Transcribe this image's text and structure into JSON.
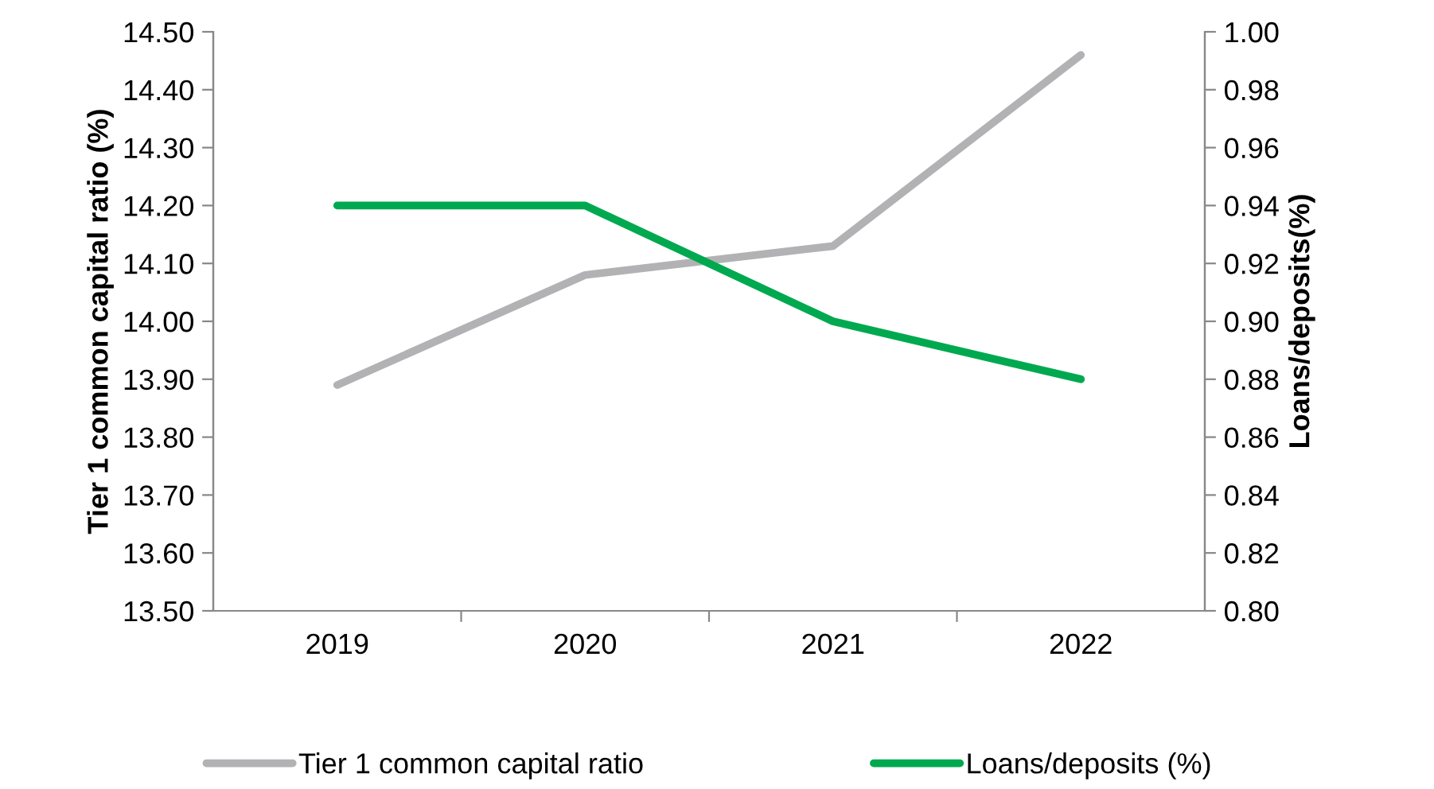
{
  "chart_data": {
    "type": "line",
    "categories": [
      "2019",
      "2020",
      "2021",
      "2022"
    ],
    "ylabel": "Tier 1 common capital ratio (%)",
    "y2label": "Loans/deposits(%)",
    "series": [
      {
        "name": "Tier 1 common capital ratio",
        "color": "#b2b2b4",
        "values": [
          13.89,
          14.08,
          14.13,
          14.46
        ]
      },
      {
        "name": "Loans/deposits (%)",
        "color": "#00a94f",
        "axis": "y2",
        "values": [
          0.94,
          0.94,
          0.9,
          0.88
        ]
      }
    ],
    "ylim": [
      13.5,
      14.5
    ],
    "yticks": [
      {
        "value": 13.5,
        "label": "13.50"
      },
      {
        "value": 13.6,
        "label": "13.60"
      },
      {
        "value": 13.7,
        "label": "13.70"
      },
      {
        "value": 13.8,
        "label": "13.80"
      },
      {
        "value": 13.9,
        "label": "13.90"
      },
      {
        "value": 14.0,
        "label": "14.00"
      },
      {
        "value": 14.1,
        "label": "14.10"
      },
      {
        "value": 14.2,
        "label": "14.20"
      },
      {
        "value": 14.3,
        "label": "14.30"
      },
      {
        "value": 14.4,
        "label": "14.40"
      },
      {
        "value": 14.5,
        "label": "14.50"
      }
    ],
    "y2lim": [
      0.8,
      1.0
    ],
    "y2ticks": [
      {
        "value": 0.8,
        "label": "0.80"
      },
      {
        "value": 0.82,
        "label": "0.82"
      },
      {
        "value": 0.84,
        "label": "0.84"
      },
      {
        "value": 0.86,
        "label": "0.86"
      },
      {
        "value": 0.88,
        "label": "0.88"
      },
      {
        "value": 0.9,
        "label": "0.90"
      },
      {
        "value": 0.92,
        "label": "0.92"
      },
      {
        "value": 0.94,
        "label": "0.94"
      },
      {
        "value": 0.96,
        "label": "0.96"
      },
      {
        "value": 0.98,
        "label": "0.98"
      },
      {
        "value": 1.0,
        "label": "1.00"
      }
    ],
    "legend": "bottom",
    "grid": false,
    "marker": "none",
    "line_style": "solid"
  }
}
